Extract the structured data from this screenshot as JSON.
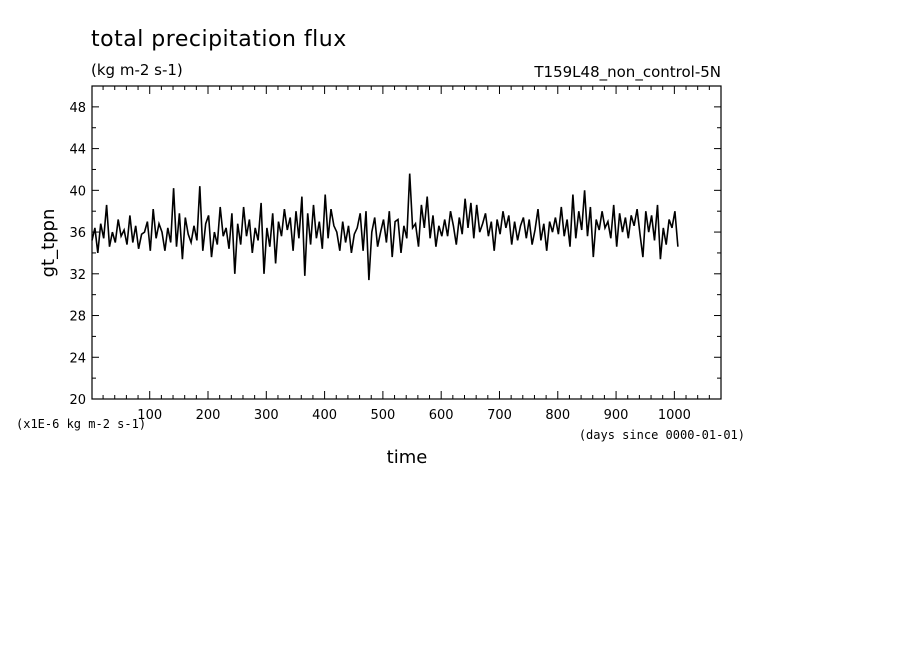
{
  "header": {
    "title": "total precipitation flux",
    "units": "(kg m-2 s-1)",
    "experiment": "T159L48_non_control-5N"
  },
  "axes": {
    "ylabel": "gt_tppn",
    "xlabel": "time",
    "y_scale_note": "(x1E-6 kg m-2 s-1)",
    "x_units_note": "(days since 0000-01-01)"
  },
  "chart_data": {
    "type": "line",
    "title": "total precipitation flux",
    "subtitle": "(kg m-2 s-1)",
    "xlabel": "time",
    "ylabel": "gt_tppn",
    "xlim": [
      1,
      1080
    ],
    "ylim": [
      20,
      50
    ],
    "x_ticks": [
      100,
      200,
      300,
      400,
      500,
      600,
      700,
      800,
      900,
      1000
    ],
    "y_ticks": [
      20,
      24,
      28,
      32,
      36,
      40,
      44,
      48
    ],
    "grid": false,
    "series": [
      {
        "name": "T159L48_non_control-5N",
        "color": "#000000",
        "sample_interval_days": 5,
        "x_start": 1,
        "values": [
          35.2,
          36.4,
          34.0,
          36.8,
          35.4,
          38.6,
          34.6,
          36.0,
          35.0,
          37.2,
          35.6,
          36.2,
          34.8,
          37.6,
          35.0,
          36.6,
          34.4,
          35.8,
          36.0,
          37.0,
          34.2,
          38.2,
          35.4,
          36.8,
          36.0,
          34.2,
          36.4,
          35.0,
          40.2,
          34.6,
          37.8,
          33.4,
          37.4,
          35.8,
          35.0,
          36.6,
          35.2,
          40.4,
          34.2,
          36.8,
          37.6,
          33.6,
          36.0,
          34.8,
          38.4,
          35.6,
          36.4,
          34.4,
          37.8,
          32.0,
          36.8,
          34.8,
          38.4,
          35.6,
          37.2,
          34.0,
          36.4,
          35.2,
          38.8,
          32.0,
          36.4,
          34.6,
          37.8,
          33.0,
          37.0,
          35.6,
          38.2,
          36.2,
          37.4,
          34.2,
          38.0,
          35.4,
          39.4,
          31.8,
          37.8,
          34.8,
          38.6,
          35.4,
          37.0,
          34.4,
          39.6,
          35.4,
          38.2,
          36.6,
          36.0,
          34.2,
          37.0,
          35.0,
          36.6,
          34.0,
          35.8,
          36.4,
          37.8,
          34.2,
          38.0,
          31.4,
          36.0,
          37.4,
          34.6,
          36.0,
          37.2,
          35.0,
          38.0,
          33.6,
          37.0,
          37.2,
          34.0,
          36.6,
          35.4,
          41.6,
          36.4,
          36.8,
          34.6,
          38.6,
          36.4,
          39.4,
          35.4,
          37.6,
          34.6,
          36.6,
          35.6,
          37.2,
          35.6,
          38.0,
          36.6,
          34.8,
          37.4,
          35.8,
          39.2,
          36.4,
          38.8,
          35.4,
          38.6,
          36.0,
          36.8,
          37.8,
          35.6,
          37.0,
          34.2,
          37.2,
          35.8,
          38.0,
          36.4,
          37.6,
          34.8,
          37.0,
          35.2,
          36.6,
          37.4,
          35.4,
          37.2,
          34.8,
          36.2,
          38.2,
          35.2,
          36.8,
          34.2,
          37.0,
          36.0,
          37.4,
          35.8,
          38.4,
          35.6,
          37.2,
          34.6,
          39.6,
          35.4,
          38.0,
          36.2,
          40.0,
          35.6,
          38.4,
          33.6,
          37.2,
          36.2,
          38.0,
          36.4,
          37.0,
          35.4,
          38.6,
          34.6,
          37.8,
          36.0,
          37.4,
          35.4,
          37.6,
          36.6,
          38.2,
          35.8,
          33.6,
          38.0,
          36.0,
          37.6,
          35.2,
          38.6,
          33.4,
          36.4,
          34.8,
          37.2,
          36.4,
          38.0,
          34.6
        ]
      }
    ]
  }
}
